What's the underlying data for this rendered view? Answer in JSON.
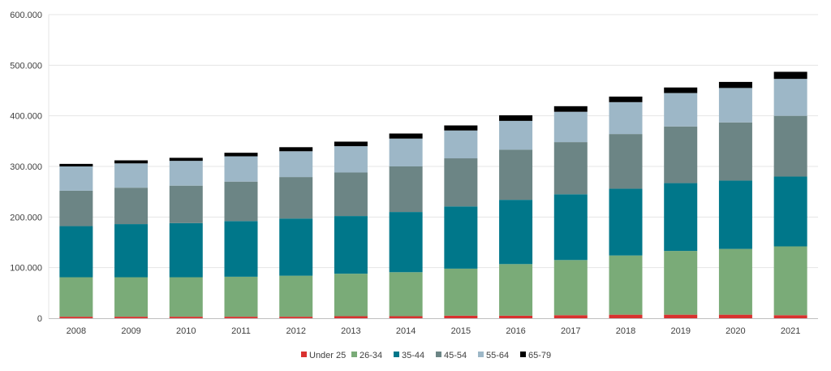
{
  "chart_data": {
    "type": "bar",
    "stacked": true,
    "categories": [
      "2008",
      "2009",
      "2010",
      "2011",
      "2012",
      "2013",
      "2014",
      "2015",
      "2016",
      "2017",
      "2018",
      "2019",
      "2020",
      "2021"
    ],
    "series": [
      {
        "name": "Under 25",
        "color": "#d9312f",
        "values": [
          3000,
          3000,
          3000,
          3000,
          3000,
          4000,
          4000,
          5000,
          5000,
          6000,
          7000,
          7000,
          7000,
          6000
        ]
      },
      {
        "name": "26-34",
        "color": "#7aab78",
        "values": [
          78000,
          78000,
          78000,
          79000,
          81000,
          84000,
          87000,
          93000,
          102000,
          109000,
          117000,
          126000,
          130000,
          136000
        ]
      },
      {
        "name": "35-44",
        "color": "#00778a",
        "values": [
          101000,
          105000,
          107000,
          110000,
          113000,
          114000,
          119000,
          123000,
          127000,
          130000,
          132000,
          134000,
          135000,
          138000
        ]
      },
      {
        "name": "45-54",
        "color": "#6c8585",
        "values": [
          70000,
          72000,
          74000,
          78000,
          82000,
          86000,
          90000,
          95000,
          99000,
          103000,
          108000,
          112000,
          115000,
          120000
        ]
      },
      {
        "name": "55-64",
        "color": "#9db7c7",
        "values": [
          48000,
          48000,
          49000,
          50000,
          51000,
          52000,
          55000,
          55000,
          57000,
          60000,
          63000,
          66000,
          68000,
          73000
        ]
      },
      {
        "name": "65-79",
        "color": "#000000",
        "values": [
          5000,
          6000,
          6000,
          7000,
          8000,
          9000,
          10000,
          10000,
          11000,
          11000,
          11000,
          11000,
          12000,
          14000
        ]
      }
    ],
    "y_ticks": [
      "0",
      "100.000",
      "200.000",
      "300.000",
      "400.000",
      "500.000",
      "600.000"
    ],
    "ylim": [
      0,
      600000
    ],
    "grid": true,
    "legend_position": "bottom"
  }
}
